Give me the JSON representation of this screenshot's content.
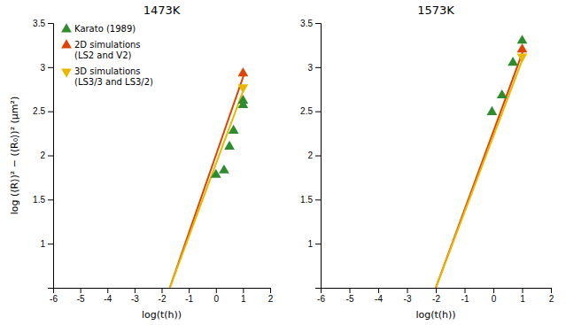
{
  "chart_data": [
    {
      "type": "line",
      "title": "1473K",
      "xlabel": "log(t(h))",
      "ylabel": "log (⟨R⟩)² − (⟨R₀⟩)² (μm²)",
      "xlim": [
        -6,
        2
      ],
      "ylim": [
        0.5,
        3.5
      ],
      "xticks": [
        -6,
        -5,
        -4,
        -3,
        -2,
        -1,
        0,
        1,
        2
      ],
      "yticks": [
        1,
        1.5,
        2,
        2.5,
        3,
        3.5
      ],
      "legend": "upper left",
      "series": [
        {
          "name": "Karato (1989)",
          "type": "scatter",
          "marker": "triangle-up",
          "color": "#2e8b2e",
          "x": [
            0.0,
            0.3,
            0.5,
            0.65,
            1.0,
            1.0
          ],
          "values": [
            1.78,
            1.83,
            2.1,
            2.28,
            2.57,
            2.62
          ]
        },
        {
          "type": "line",
          "color": "#dd4400",
          "x": [
            -1.7,
            1.05
          ],
          "values": [
            0.5,
            2.93
          ]
        },
        {
          "type": "line",
          "color": "#e8b800",
          "x": [
            -1.7,
            1.05
          ],
          "values": [
            0.5,
            2.77
          ]
        },
        {
          "name": "2D simulations\n(LS2 and V2)",
          "type": "scatter",
          "marker": "triangle-up",
          "color": "#dd4400",
          "x": [
            1.0
          ],
          "values": [
            2.93
          ]
        },
        {
          "name": "3D simulations\n(LS3/3 and LS3/2)",
          "type": "scatter",
          "marker": "triangle-down",
          "color": "#e8b800",
          "x": [
            1.0
          ],
          "values": [
            2.77
          ]
        }
      ]
    },
    {
      "type": "line",
      "title": "1573K",
      "xlabel": "log(t(h))",
      "xlim": [
        -6,
        2
      ],
      "ylim": [
        0.5,
        3.5
      ],
      "xticks": [
        -6,
        -5,
        -4,
        -3,
        -2,
        -1,
        0,
        1,
        2
      ],
      "yticks": [
        1,
        1.5,
        2,
        2.5,
        3,
        3.5
      ],
      "series": [
        {
          "type": "scatter",
          "marker": "triangle-up",
          "color": "#2e8b2e",
          "x": [
            -0.05,
            0.3,
            0.68,
            1.0
          ],
          "values": [
            2.49,
            2.68,
            3.05,
            3.3
          ]
        },
        {
          "type": "line",
          "color": "#dd4400",
          "x": [
            -2.0,
            1.05
          ],
          "values": [
            0.5,
            3.2
          ]
        },
        {
          "type": "line",
          "color": "#e8b800",
          "x": [
            -2.0,
            1.05
          ],
          "values": [
            0.5,
            3.12
          ]
        },
        {
          "type": "scatter",
          "marker": "triangle-up",
          "color": "#dd4400",
          "x": [
            1.0
          ],
          "values": [
            3.2
          ]
        },
        {
          "type": "scatter",
          "marker": "triangle-down",
          "color": "#e8b800",
          "x": [
            1.0
          ],
          "values": [
            3.12
          ]
        }
      ]
    }
  ]
}
